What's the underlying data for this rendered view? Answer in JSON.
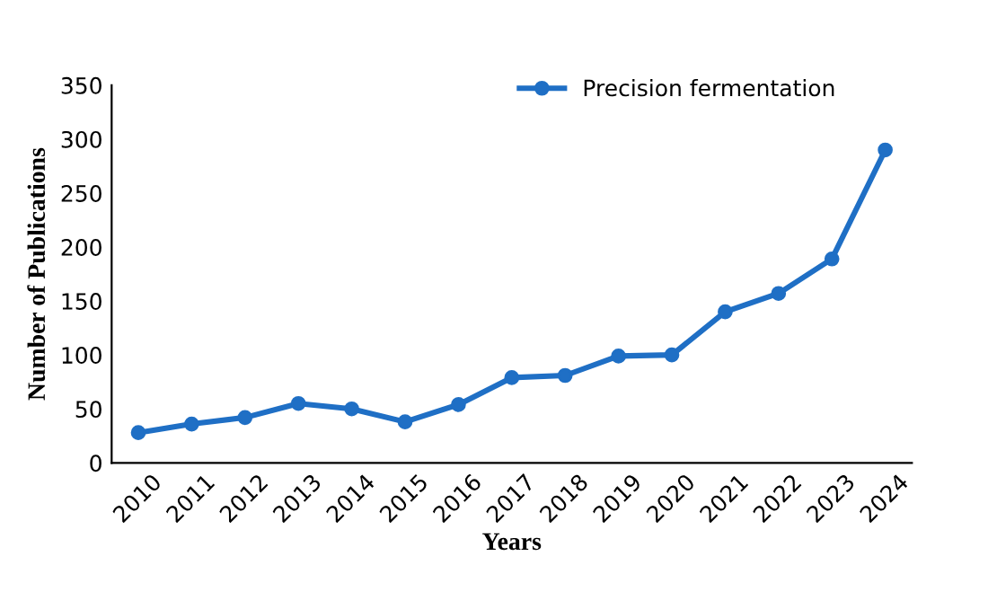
{
  "chart_data": {
    "type": "line",
    "xlabel": "Years",
    "ylabel": "Number of Publications",
    "categories": [
      "2010",
      "2011",
      "2012",
      "2013",
      "2014",
      "2015",
      "2016",
      "2017",
      "2018",
      "2019",
      "2020",
      "2021",
      "2022",
      "2023",
      "2024"
    ],
    "series": [
      {
        "name": "Precision fermentation",
        "color": "#1f6fc5",
        "values": [
          28,
          36,
          42,
          55,
          50,
          38,
          54,
          79,
          81,
          99,
          100,
          140,
          157,
          189,
          290
        ]
      }
    ],
    "ylim": [
      0,
      350
    ],
    "yticks": [
      0,
      50,
      100,
      150,
      200,
      250,
      300,
      350
    ],
    "grid": false,
    "legend": "top right",
    "marker": "circle",
    "line_style": "solid"
  }
}
